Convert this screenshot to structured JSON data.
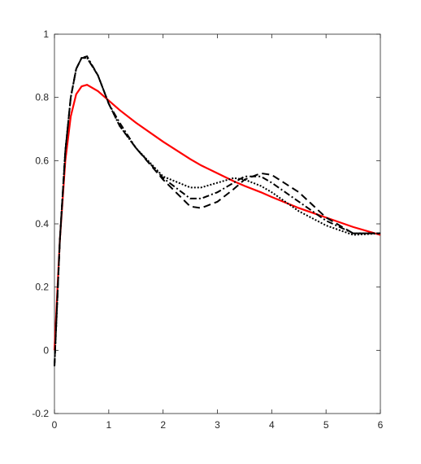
{
  "chart_data": {
    "type": "line",
    "x": [
      0,
      0.1,
      0.2,
      0.3,
      0.4,
      0.5,
      0.6,
      0.8,
      1.0,
      1.2,
      1.5,
      2,
      2.5,
      2.7,
      3,
      3.3,
      3.5,
      3.8,
      4,
      4.5,
      5,
      5.5,
      6
    ],
    "series": [
      {
        "color": "#ff0000",
        "linestyle": "solid",
        "values": [
          0.0,
          0.35,
          0.6,
          0.74,
          0.81,
          0.835,
          0.84,
          0.82,
          0.79,
          0.76,
          0.72,
          0.66,
          0.605,
          0.585,
          0.56,
          0.535,
          0.52,
          0.5,
          0.485,
          0.45,
          0.42,
          0.39,
          0.365
        ]
      },
      {
        "color": "#000000",
        "linestyle": "dashed",
        "values": [
          -0.05,
          0.35,
          0.63,
          0.8,
          0.89,
          0.925,
          0.925,
          0.87,
          0.78,
          0.71,
          0.64,
          0.54,
          0.455,
          0.45,
          0.47,
          0.51,
          0.54,
          0.56,
          0.555,
          0.5,
          0.42,
          0.37,
          0.37
        ]
      },
      {
        "color": "#000000",
        "linestyle": "dotted",
        "values": [
          -0.05,
          0.35,
          0.63,
          0.8,
          0.89,
          0.925,
          0.925,
          0.87,
          0.78,
          0.71,
          0.64,
          0.55,
          0.515,
          0.515,
          0.53,
          0.545,
          0.54,
          0.52,
          0.5,
          0.44,
          0.395,
          0.365,
          0.37
        ]
      },
      {
        "color": "#000000",
        "linestyle": "dashdot",
        "values": [
          -0.05,
          0.35,
          0.63,
          0.8,
          0.89,
          0.925,
          0.93,
          0.87,
          0.78,
          0.72,
          0.64,
          0.545,
          0.48,
          0.48,
          0.5,
          0.53,
          0.55,
          0.55,
          0.53,
          0.47,
          0.41,
          0.37,
          0.37
        ]
      }
    ],
    "xlim": [
      0,
      6
    ],
    "xticks": [
      0,
      1,
      2,
      3,
      4,
      5,
      6
    ],
    "ylim": [
      -0.2,
      1
    ],
    "yticks": [
      -0.2,
      0,
      0.2,
      0.4,
      0.6,
      0.8,
      1
    ],
    "grid": false
  }
}
